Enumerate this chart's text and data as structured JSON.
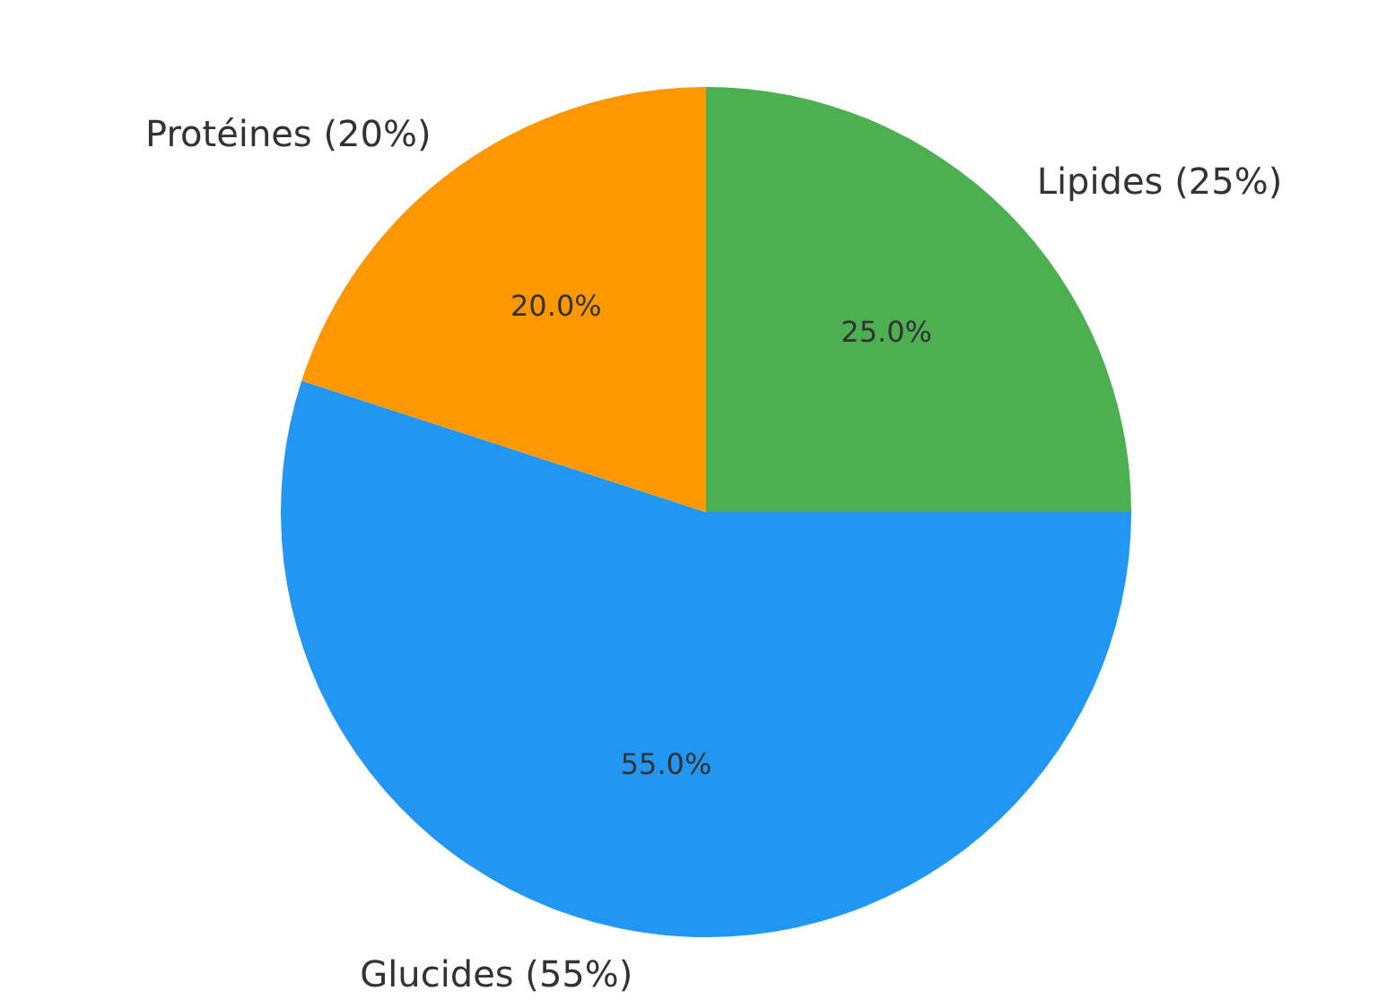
{
  "chart_data": {
    "type": "pie",
    "categories": [
      "Lipides (25%)",
      "Glucides (55%)",
      "Protéines (20%)"
    ],
    "values": [
      25,
      55,
      20
    ],
    "colors": [
      "#4caf50",
      "#2196f3",
      "#ff9800"
    ],
    "value_labels": [
      "25.0%",
      "55.0%",
      "20.0%"
    ]
  }
}
